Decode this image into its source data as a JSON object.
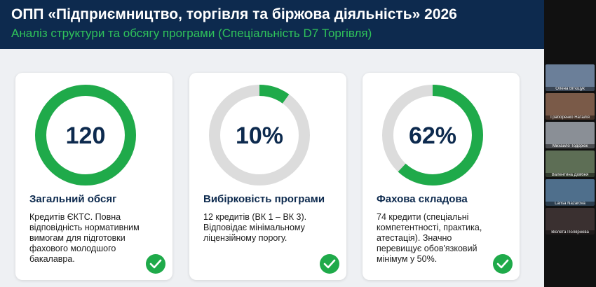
{
  "header": {
    "title": "ОПП «Підприємництво, торгівля та біржова діяльність» 2026",
    "subtitle": "Аналіз структури та обсягу програми (Спеціальність D7 Торгівля)"
  },
  "cards": [
    {
      "kind": "total",
      "value": 120,
      "value_label": "120",
      "title": "Загальний обсяг",
      "description": "Кредитів ЄКТС. Повна відповідність нормативним вимогам для підготовки фахового молодшого бакалавра."
    },
    {
      "kind": "percent",
      "value": 10,
      "value_label": "10%",
      "title": "Вибірковість програми",
      "description": "12 кредитів (ВК 1 – ВК 3). Відповідає мінімальному ліцензійному порогу."
    },
    {
      "kind": "percent",
      "value": 62,
      "value_label": "62%",
      "title": "Фахова складова",
      "description": "74 кредити (спеціальні компетентності, практика, атестація). Значно перевищує обов'язковий мінімум у 50%."
    }
  ],
  "participants": [
    "Олена Вітєщук",
    "Граборенко Наталія",
    "Михайло Тодорюк",
    "Валентина Довбня",
    "Larisa Nazarova",
    "Віолета Полярнова"
  ]
}
